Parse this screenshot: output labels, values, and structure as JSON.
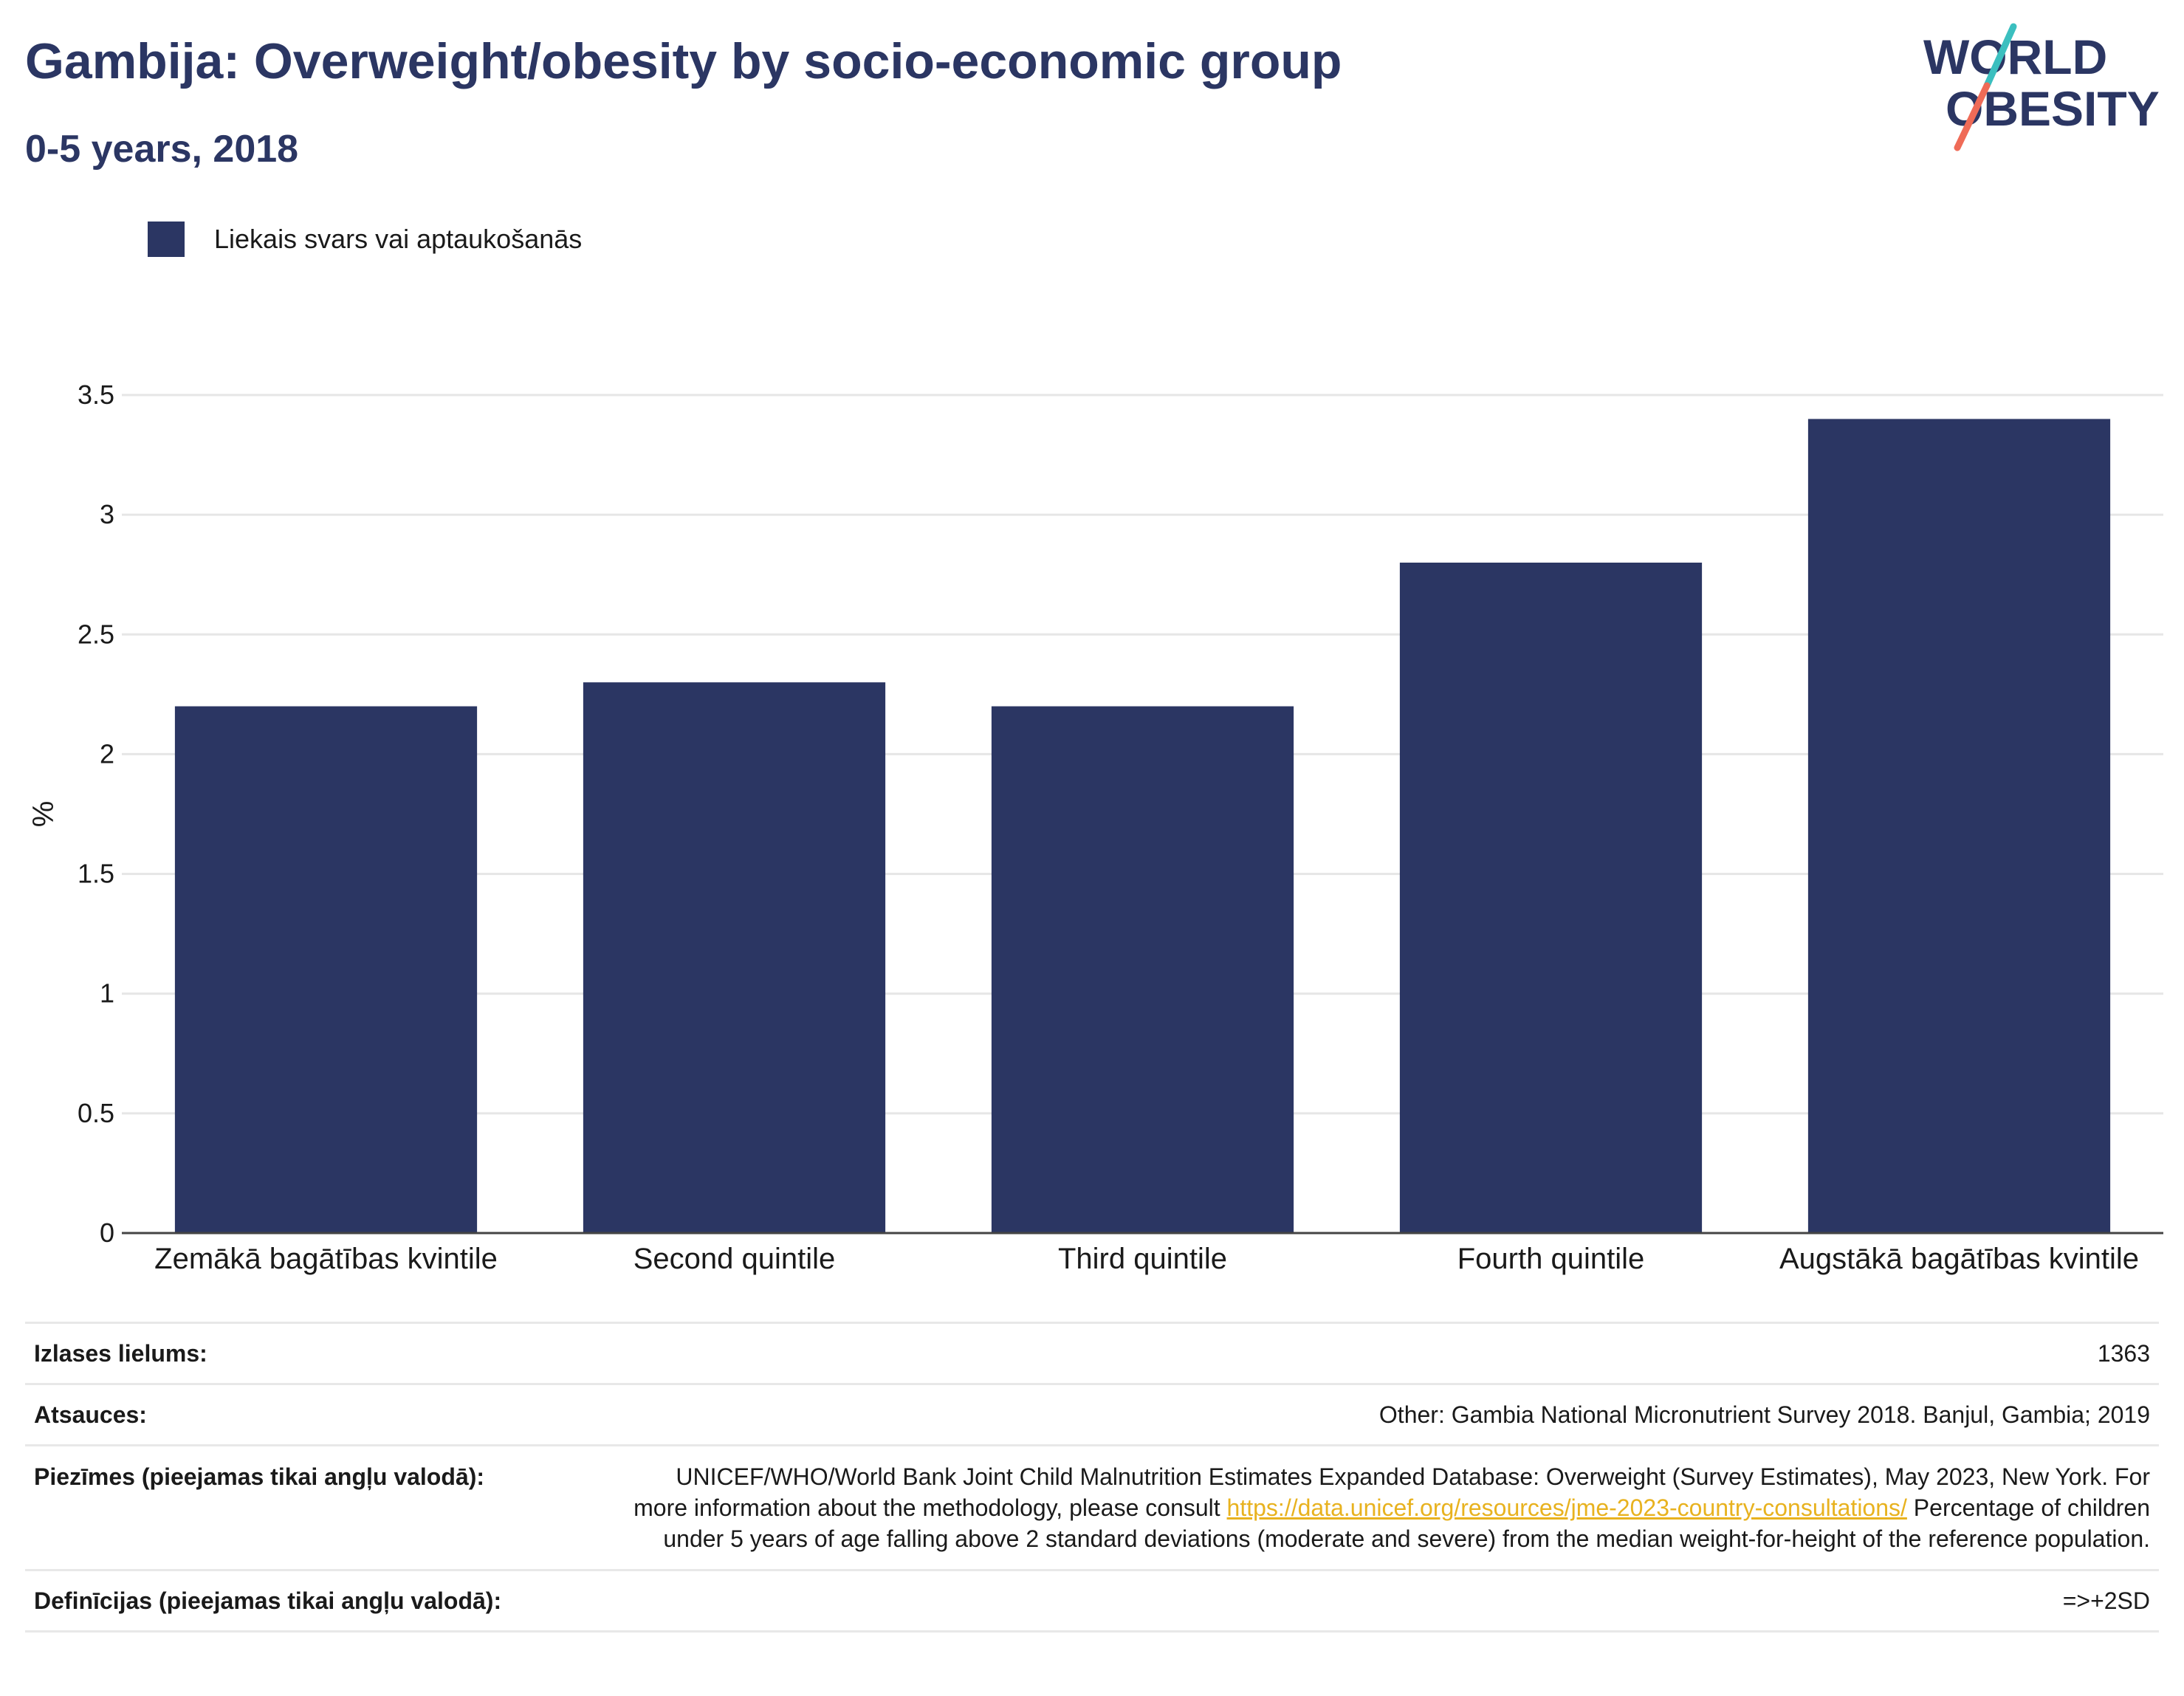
{
  "header": {
    "title": "Gambija: Overweight/obesity by socio-economic group",
    "subtitle": "0-5 years, 2018"
  },
  "logo": {
    "line1": "WORLD",
    "line2": "OBESITY",
    "colors": {
      "text": "#2b3663",
      "slash_top": "#3bbfbf",
      "slash_bottom": "#ef6b57"
    }
  },
  "chart_data": {
    "type": "bar",
    "categories": [
      "Zemākā bagātības kvintile",
      "Second quintile",
      "Third quintile",
      "Fourth quintile",
      "Augstākā bagātības kvintile"
    ],
    "series": [
      {
        "name": "Liekais svars vai aptaukošanās",
        "values": [
          2.2,
          2.3,
          2.2,
          2.8,
          3.4
        ],
        "color": "#2b3663"
      }
    ],
    "xlabel": "",
    "ylabel": "%",
    "ylim": [
      0,
      3.5
    ],
    "yticks": [
      0,
      0.5,
      1,
      1.5,
      2,
      2.5,
      3,
      3.5
    ],
    "ytick_labels": [
      "0",
      "0.5",
      "1",
      "1.5",
      "2",
      "2.5",
      "3",
      "3.5"
    ],
    "grid": true,
    "legend_position": "top-left"
  },
  "info": {
    "sample_size": {
      "label": "Izlases lielums:",
      "value": "1363"
    },
    "references": {
      "label": "Atsauces:",
      "value": "Other: Gambia National Micronutrient Survey 2018. Banjul, Gambia; 2019"
    },
    "notes": {
      "label": "Piezīmes (pieejamas tikai angļu valodā):",
      "text_before": "UNICEF/WHO/World Bank Joint Child Malnutrition Estimates Expanded Database: Overweight (Survey Estimates), May 2023, New York. For more information about the methodology, please consult",
      "link": "https://data.unicef.org/resources/jme-2023-country-consultations/",
      "text_after": "Percentage of children under 5 years of age falling above 2 standard deviations (moderate and severe) from the median weight-for-height of the reference population."
    },
    "definitions": {
      "label": "Definīcijas (pieejamas tikai angļu valodā):",
      "value": "=>+2SD"
    }
  }
}
